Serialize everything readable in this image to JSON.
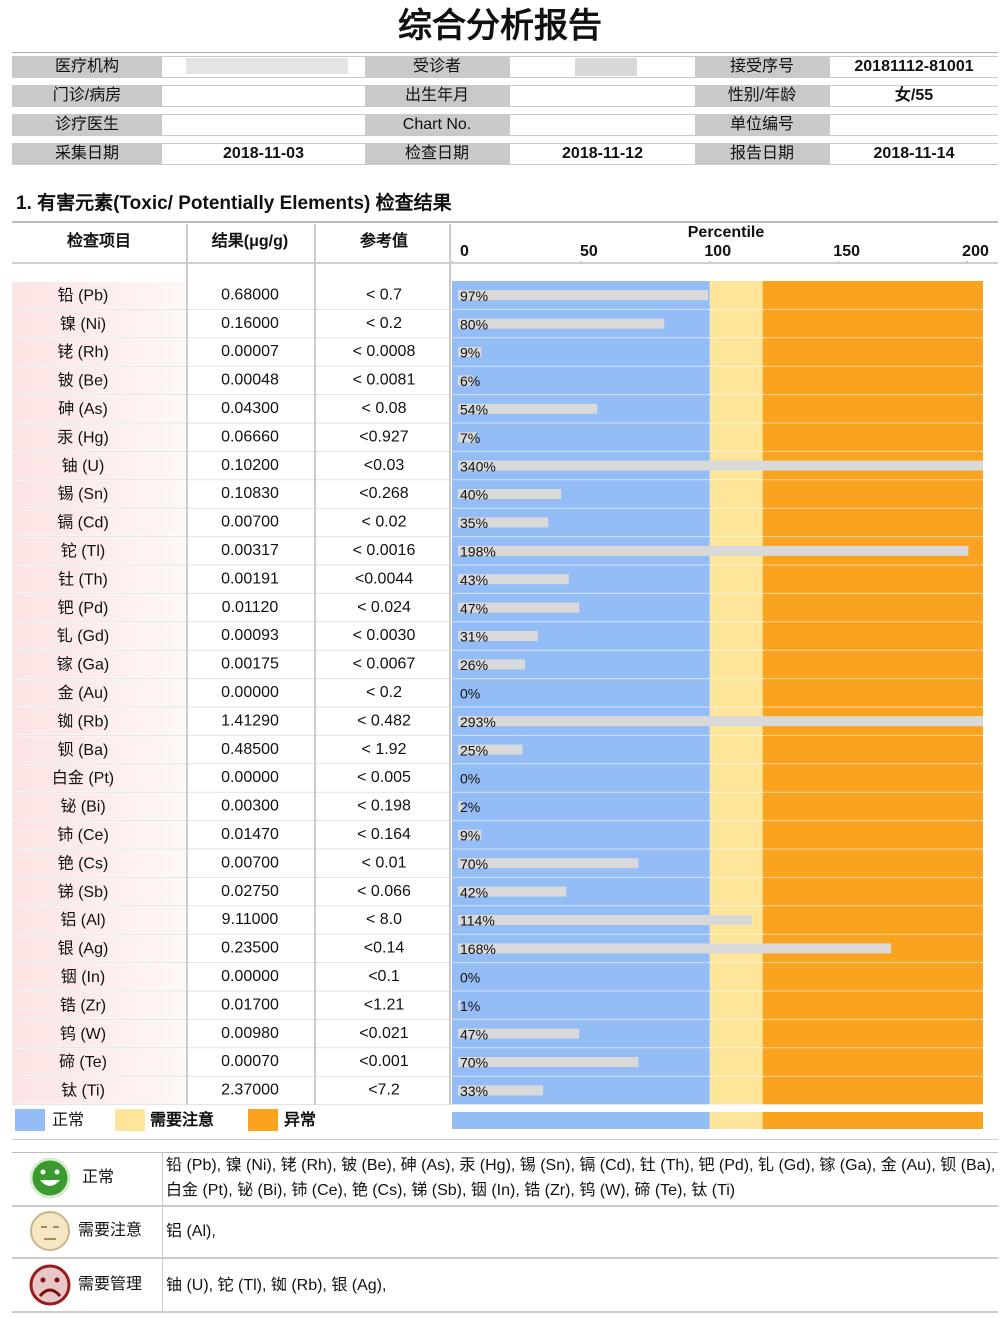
{
  "title": "综合分析报告",
  "info": {
    "rows": [
      [
        {
          "label": "医疗机构"
        },
        {
          "label": "受诊者"
        },
        {
          "label": "接受序号",
          "value": "20181112-81001"
        }
      ],
      [
        {
          "label": "门诊/病房"
        },
        {
          "label": "出生年月"
        },
        {
          "label": "性别/年龄",
          "value": "女/55"
        }
      ],
      [
        {
          "label": "诊疗医生"
        },
        {
          "label": "Chart No."
        },
        {
          "label": "单位编号"
        }
      ],
      [
        {
          "label": "采集日期",
          "value": "2018-11-03"
        },
        {
          "label": "检查日期",
          "value": "2018-11-12"
        },
        {
          "label": "报告日期",
          "value": "2018-11-14"
        }
      ]
    ]
  },
  "section_title": "1. 有害元素(Toxic/ Potentially Elements) 检查结果",
  "table": {
    "headers": {
      "item": "检查项目",
      "result": "结果(μg/g)",
      "reference": "参考值"
    },
    "percentile": {
      "title": "Percentile",
      "xlim": [
        0,
        206
      ],
      "xticks": [
        0,
        50,
        100,
        150,
        200
      ]
    },
    "zones": [
      {
        "name": "正常",
        "color": "#94bdf5",
        "from": 0,
        "to": 100
      },
      {
        "name": "需要注意",
        "color": "#fde59a",
        "from": 100,
        "to": 120.5
      },
      {
        "name": "异常",
        "color": "#f9a31f",
        "from": 120.5,
        "to": 206
      }
    ],
    "rows": [
      {
        "name": "铅 (Pb)",
        "result": "0.68000",
        "reference": "< 0.7",
        "percentile": 97,
        "percentile_label": "97%"
      },
      {
        "name": "镍 (Ni)",
        "result": "0.16000",
        "reference": "< 0.2",
        "percentile": 80,
        "percentile_label": "80%"
      },
      {
        "name": "铑 (Rh)",
        "result": "0.00007",
        "reference": "< 0.0008",
        "percentile": 9,
        "percentile_label": "9%"
      },
      {
        "name": "铍 (Be)",
        "result": "0.00048",
        "reference": "< 0.0081",
        "percentile": 6,
        "percentile_label": "6%"
      },
      {
        "name": "砷 (As)",
        "result": "0.04300",
        "reference": "< 0.08",
        "percentile": 54,
        "percentile_label": "54%"
      },
      {
        "name": "汞 (Hg)",
        "result": "0.06660",
        "reference": "<0.927",
        "percentile": 7,
        "percentile_label": "7%"
      },
      {
        "name": "铀 (U)",
        "result": "0.10200",
        "reference": "<0.03",
        "percentile": 340,
        "percentile_label": "340%"
      },
      {
        "name": "锡 (Sn)",
        "result": "0.10830",
        "reference": "<0.268",
        "percentile": 40,
        "percentile_label": "40%"
      },
      {
        "name": "镉 (Cd)",
        "result": "0.00700",
        "reference": "< 0.02",
        "percentile": 35,
        "percentile_label": "35%"
      },
      {
        "name": "铊 (Tl)",
        "result": "0.00317",
        "reference": "< 0.0016",
        "percentile": 198,
        "percentile_label": "198%"
      },
      {
        "name": "钍 (Th)",
        "result": "0.00191",
        "reference": "<0.0044",
        "percentile": 43,
        "percentile_label": "43%"
      },
      {
        "name": "钯 (Pd)",
        "result": "0.01120",
        "reference": "< 0.024",
        "percentile": 47,
        "percentile_label": "47%"
      },
      {
        "name": "钆 (Gd)",
        "result": "0.00093",
        "reference": "< 0.0030",
        "percentile": 31,
        "percentile_label": "31%"
      },
      {
        "name": "镓 (Ga)",
        "result": "0.00175",
        "reference": "< 0.0067",
        "percentile": 26,
        "percentile_label": "26%"
      },
      {
        "name": "金 (Au)",
        "result": "0.00000",
        "reference": "< 0.2",
        "percentile": 0,
        "percentile_label": "0%"
      },
      {
        "name": "铷 (Rb)",
        "result": "1.41290",
        "reference": "< 0.482",
        "percentile": 293,
        "percentile_label": "293%"
      },
      {
        "name": "钡 (Ba)",
        "result": "0.48500",
        "reference": "< 1.92",
        "percentile": 25,
        "percentile_label": "25%"
      },
      {
        "name": "白金 (Pt)",
        "result": "0.00000",
        "reference": "< 0.005",
        "percentile": 0,
        "percentile_label": "0%"
      },
      {
        "name": "铋 (Bi)",
        "result": "0.00300",
        "reference": "< 0.198",
        "percentile": 2,
        "percentile_label": "2%"
      },
      {
        "name": "铈 (Ce)",
        "result": "0.01470",
        "reference": "< 0.164",
        "percentile": 9,
        "percentile_label": "9%"
      },
      {
        "name": "铯 (Cs)",
        "result": "0.00700",
        "reference": "< 0.01",
        "percentile": 70,
        "percentile_label": "70%"
      },
      {
        "name": "锑 (Sb)",
        "result": "0.02750",
        "reference": "< 0.066",
        "percentile": 42,
        "percentile_label": "42%"
      },
      {
        "name": "铝 (Al)",
        "result": "9.11000",
        "reference": "< 8.0",
        "percentile": 114,
        "percentile_label": "114%"
      },
      {
        "name": "银 (Ag)",
        "result": "0.23500",
        "reference": "<0.14",
        "percentile": 168,
        "percentile_label": "168%"
      },
      {
        "name": "铟 (In)",
        "result": "0.00000",
        "reference": "<0.1",
        "percentile": 0,
        "percentile_label": "0%"
      },
      {
        "name": "锆 (Zr)",
        "result": "0.01700",
        "reference": "<1.21",
        "percentile": 1,
        "percentile_label": "1%"
      },
      {
        "name": "钨 (W)",
        "result": "0.00980",
        "reference": "<0.021",
        "percentile": 47,
        "percentile_label": "47%"
      },
      {
        "name": "碲 (Te)",
        "result": "0.00070",
        "reference": "<0.001",
        "percentile": 70,
        "percentile_label": "70%"
      },
      {
        "name": "钛 (Ti)",
        "result": "2.37000",
        "reference": "<7.2",
        "percentile": 33,
        "percentile_label": "33%"
      }
    ]
  },
  "summary": [
    {
      "label": "正常",
      "elements": "铅 (Pb), 镍 (Ni), 铑 (Rh), 铍 (Be), 砷 (As), 汞 (Hg), 锡 (Sn), 镉 (Cd), 钍 (Th), 钯 (Pd), 钆 (Gd), 镓 (Ga), 金 (Au), 钡 (Ba), 白金 (Pt), 铋 (Bi), 铈 (Ce), 铯 (Cs), 锑 (Sb), 铟 (In), 锆 (Zr), 钨 (W), 碲 (Te), 钛 (Ti)"
    },
    {
      "label": "需要注意",
      "elements": "铝 (Al),"
    },
    {
      "label": "需要管理",
      "elements": "铀 (U), 铊 (Tl), 铷 (Rb), 银 (Ag),"
    }
  ]
}
